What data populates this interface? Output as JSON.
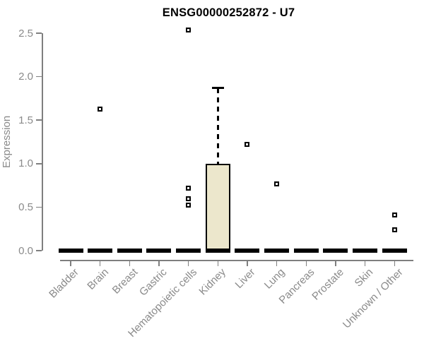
{
  "chart_data": {
    "type": "boxplot",
    "title": "ENSG00000252872 - U7",
    "ylabel": "Expression",
    "xlabel": "",
    "ylim": [
      0,
      2.5
    ],
    "yticks": [
      "0.0",
      "0.5",
      "1.0",
      "1.5",
      "2.0",
      "2.5"
    ],
    "grid": false,
    "legend": null,
    "categories": [
      "Bladder",
      "Brain",
      "Breast",
      "Gastric",
      "Hematopoietic cells",
      "Kidney",
      "Liver",
      "Lung",
      "Pancreas",
      "Prostate",
      "Skin",
      "Unknown / Other"
    ],
    "boxes": [
      {
        "category": "Bladder",
        "q1": 0,
        "median": 0,
        "q3": 0,
        "whisker_low": 0,
        "whisker_high": 0,
        "outliers": []
      },
      {
        "category": "Brain",
        "q1": 0,
        "median": 0,
        "q3": 0,
        "whisker_low": 0,
        "whisker_high": 0,
        "outliers": [
          1.63
        ]
      },
      {
        "category": "Breast",
        "q1": 0,
        "median": 0,
        "q3": 0,
        "whisker_low": 0,
        "whisker_high": 0,
        "outliers": []
      },
      {
        "category": "Gastric",
        "q1": 0,
        "median": 0,
        "q3": 0,
        "whisker_low": 0,
        "whisker_high": 0,
        "outliers": []
      },
      {
        "category": "Hematopoietic cells",
        "q1": 0,
        "median": 0,
        "q3": 0,
        "whisker_low": 0,
        "whisker_high": 0,
        "outliers": [
          2.54,
          0.72,
          0.6,
          0.52
        ]
      },
      {
        "category": "Kidney",
        "q1": 0,
        "median": 0,
        "q3": 1.0,
        "whisker_low": 0,
        "whisker_high": 1.87,
        "outliers": []
      },
      {
        "category": "Liver",
        "q1": 0,
        "median": 0,
        "q3": 0,
        "whisker_low": 0,
        "whisker_high": 0,
        "outliers": [
          1.22
        ]
      },
      {
        "category": "Lung",
        "q1": 0,
        "median": 0,
        "q3": 0,
        "whisker_low": 0,
        "whisker_high": 0,
        "outliers": [
          0.77
        ]
      },
      {
        "category": "Pancreas",
        "q1": 0,
        "median": 0,
        "q3": 0,
        "whisker_low": 0,
        "whisker_high": 0,
        "outliers": []
      },
      {
        "category": "Prostate",
        "q1": 0,
        "median": 0,
        "q3": 0,
        "whisker_low": 0,
        "whisker_high": 0,
        "outliers": []
      },
      {
        "category": "Skin",
        "q1": 0,
        "median": 0,
        "q3": 0,
        "whisker_low": 0,
        "whisker_high": 0,
        "outliers": []
      },
      {
        "category": "Unknown / Other",
        "q1": 0,
        "median": 0,
        "q3": 0,
        "whisker_low": 0,
        "whisker_high": 0,
        "outliers": [
          0.41,
          0.24
        ]
      }
    ],
    "colors": {
      "background": "#ffffff",
      "box_fill": "#ece7cc",
      "box_border": "#000000",
      "median": "#000000",
      "whisker": "#000000",
      "outlier": "#000000",
      "axis": "#7f7f7f",
      "tick_label": "#8a8a8a",
      "title": "#000000"
    }
  }
}
